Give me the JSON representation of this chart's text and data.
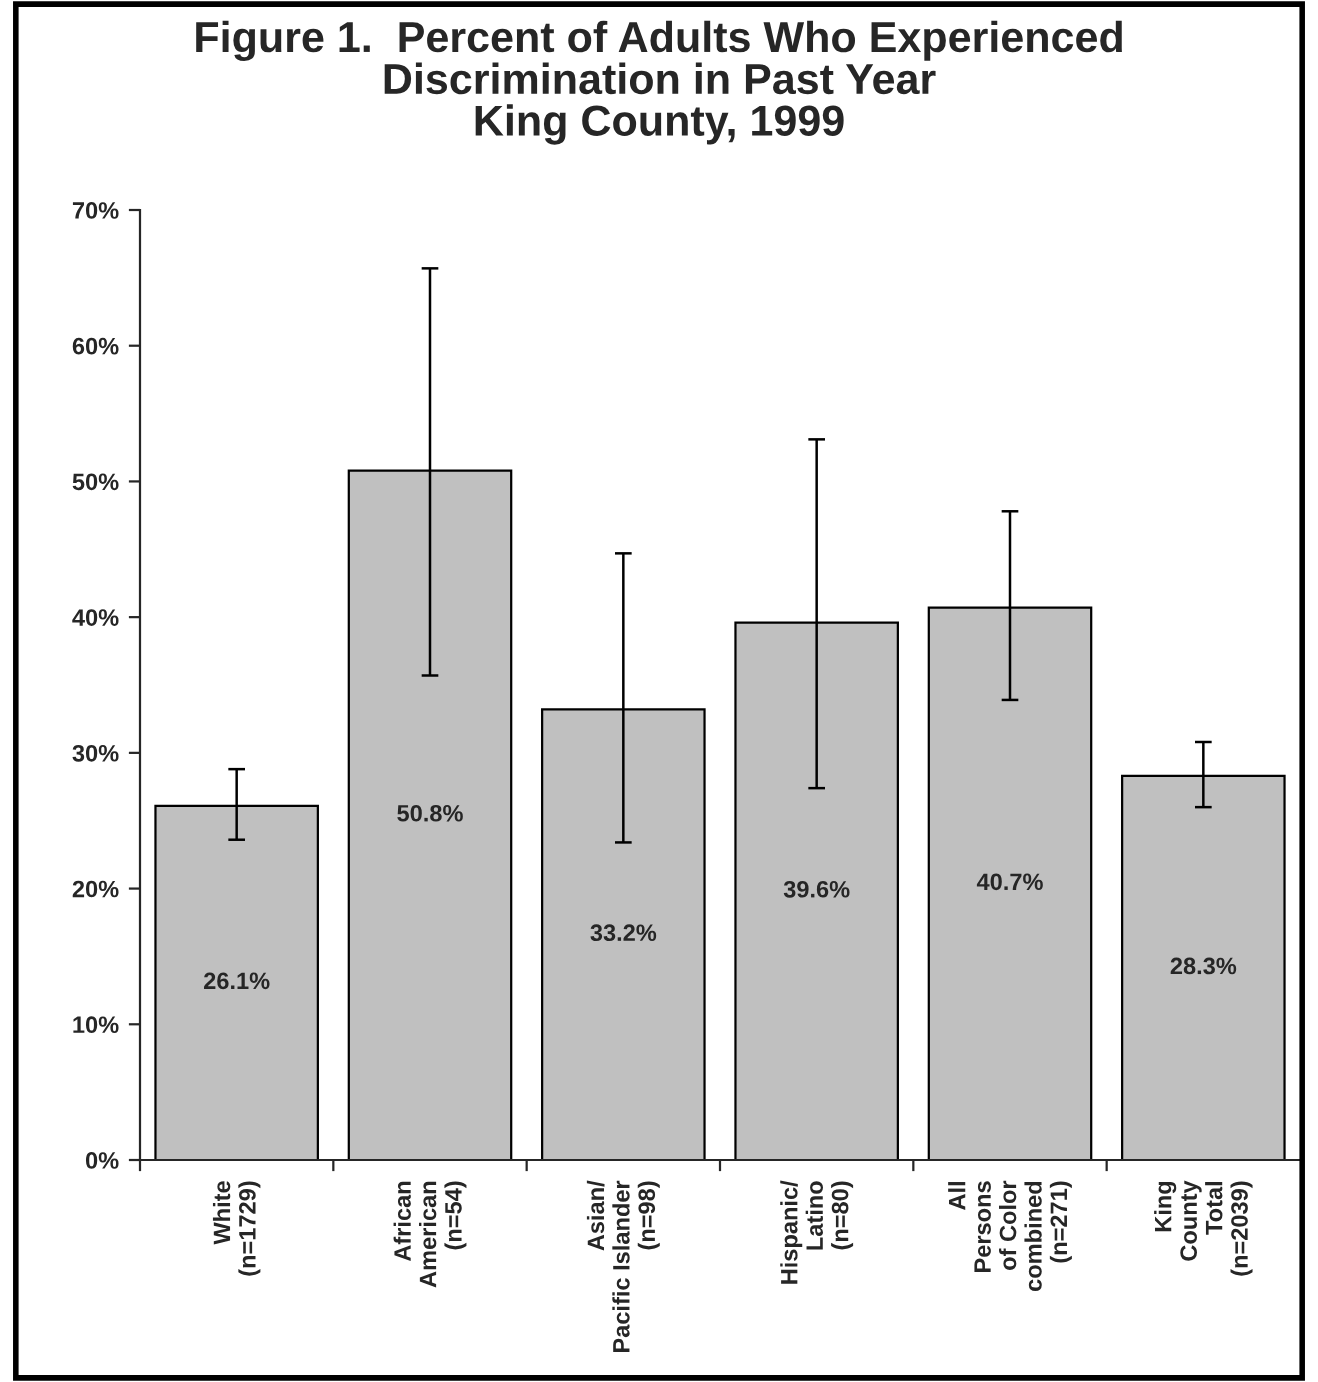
{
  "chart_data": {
    "type": "bar",
    "title": "Figure 1.  Percent of Adults Who Experienced\nDiscrimination in Past Year\nKing County, 1999",
    "categories": [
      "White\n(n=1729)",
      "African\nAmerican\n(n=54)",
      "Asian/\nPacific Islander\n(n=98)",
      "Hispanic/\nLatino\n(n=80)",
      "All\nPersons\nof Color\ncombined\n(n=271)",
      "King\nCounty\nTotal\n(n=2039)"
    ],
    "values": [
      26.1,
      50.8,
      33.2,
      39.6,
      40.7,
      28.3
    ],
    "value_labels": [
      "26.1%",
      "50.8%",
      "33.2%",
      "39.6%",
      "40.7%",
      "28.3%"
    ],
    "errors": [
      [
        23.6,
        28.8
      ],
      [
        35.7,
        65.7
      ],
      [
        23.4,
        44.7
      ],
      [
        27.4,
        53.1
      ],
      [
        33.9,
        47.8
      ],
      [
        26.0,
        30.8
      ]
    ],
    "color": "#c0c0c0",
    "ylim": [
      0,
      70
    ],
    "yticks": [
      {
        "value": 0,
        "label": "0%"
      },
      {
        "value": 10,
        "label": "10%"
      },
      {
        "value": 20,
        "label": "20%"
      },
      {
        "value": 30,
        "label": "30%"
      },
      {
        "value": 40,
        "label": "40%"
      },
      {
        "value": 50,
        "label": "50%"
      },
      {
        "value": 60,
        "label": "60%"
      },
      {
        "value": 70,
        "label": "70%"
      }
    ],
    "grid": false,
    "legend": false
  }
}
